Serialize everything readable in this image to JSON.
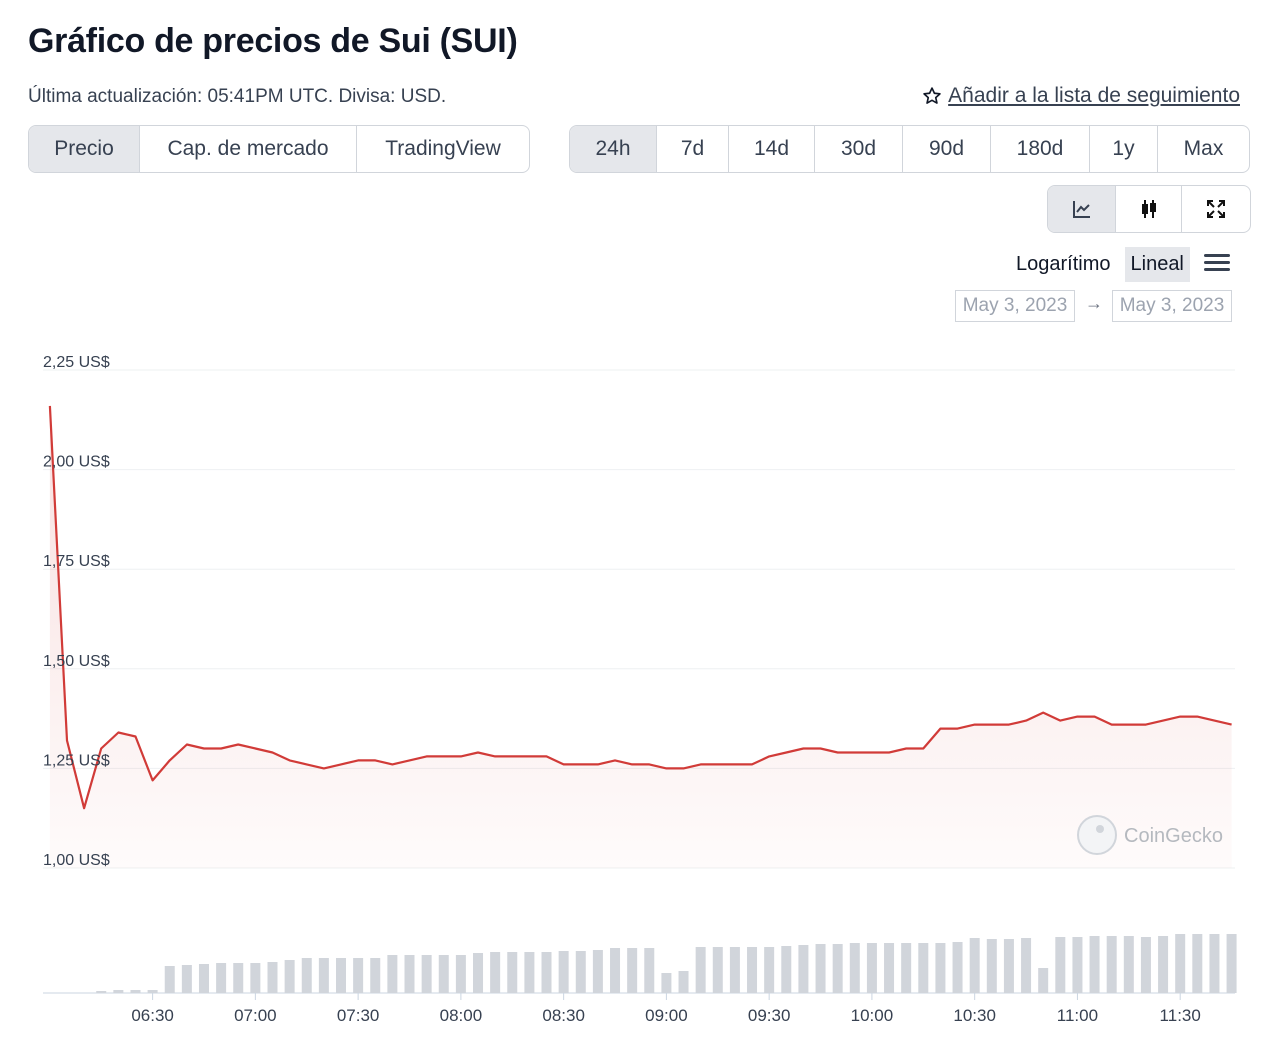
{
  "header": {
    "title": "Gráfico de precios de Sui (SUI)",
    "updated": "Última actualización: 05:41PM UTC. Divisa: USD.",
    "watchlist": "Añadir a la lista de seguimiento"
  },
  "tabs": [
    "Precio",
    "Cap. de mercado",
    "TradingView"
  ],
  "ranges": [
    "24h",
    "7d",
    "14d",
    "30d",
    "90d",
    "180d",
    "1y",
    "Max"
  ],
  "scale_options": [
    "Logarítimo",
    "Lineal"
  ],
  "date_from": "May 3, 2023",
  "date_to": "May 3, 2023",
  "watermark": "CoinGecko",
  "chart_data": {
    "type": "line",
    "color": "#d13b38",
    "x": [
      "06:00",
      "06:05",
      "06:10",
      "06:15",
      "06:20",
      "06:25",
      "06:30",
      "06:35",
      "06:40",
      "06:45",
      "06:50",
      "06:55",
      "07:00",
      "07:05",
      "07:10",
      "07:15",
      "07:20",
      "07:25",
      "07:30",
      "07:35",
      "07:40",
      "07:45",
      "07:50",
      "07:55",
      "08:00",
      "08:05",
      "08:10",
      "08:15",
      "08:20",
      "08:25",
      "08:30",
      "08:35",
      "08:40",
      "08:45",
      "08:50",
      "08:55",
      "09:00",
      "09:05",
      "09:10",
      "09:15",
      "09:20",
      "09:25",
      "09:30",
      "09:35",
      "09:40",
      "09:45",
      "09:50",
      "09:55",
      "10:00",
      "10:05",
      "10:10",
      "10:15",
      "10:20",
      "10:25",
      "10:30",
      "10:35",
      "10:40",
      "10:45",
      "10:50",
      "10:55",
      "11:00",
      "11:05",
      "11:10",
      "11:15",
      "11:20",
      "11:25",
      "11:30",
      "11:35",
      "11:40",
      "11:45"
    ],
    "values": [
      2.16,
      1.32,
      1.15,
      1.3,
      1.34,
      1.33,
      1.22,
      1.27,
      1.31,
      1.3,
      1.3,
      1.31,
      1.3,
      1.29,
      1.27,
      1.26,
      1.25,
      1.26,
      1.27,
      1.27,
      1.26,
      1.27,
      1.28,
      1.28,
      1.28,
      1.29,
      1.28,
      1.28,
      1.28,
      1.28,
      1.26,
      1.26,
      1.26,
      1.27,
      1.26,
      1.26,
      1.25,
      1.25,
      1.26,
      1.26,
      1.26,
      1.26,
      1.28,
      1.29,
      1.3,
      1.3,
      1.29,
      1.29,
      1.29,
      1.29,
      1.3,
      1.3,
      1.35,
      1.35,
      1.36,
      1.36,
      1.36,
      1.37,
      1.39,
      1.37,
      1.38,
      1.38,
      1.36,
      1.36,
      1.36,
      1.37,
      1.38,
      1.38,
      1.37,
      1.36
    ],
    "volumes": [
      0,
      0,
      0,
      2,
      3,
      3,
      3,
      27,
      28,
      29,
      30,
      30,
      30,
      31,
      33,
      35,
      35,
      35,
      35,
      35,
      38,
      38,
      38,
      38,
      38,
      40,
      41,
      41,
      41,
      41,
      42,
      42,
      43,
      45,
      45,
      45,
      20,
      22,
      46,
      46,
      46,
      46,
      46,
      47,
      48,
      49,
      49,
      50,
      50,
      50,
      50,
      50,
      50,
      51,
      55,
      54,
      54,
      55,
      25,
      56,
      56,
      57,
      57,
      57,
      56,
      57,
      59,
      59,
      59,
      59
    ],
    "volume_color": "#d1d5db",
    "xlim": [
      "05:58",
      "11:46"
    ],
    "xticks": [
      "06:30",
      "07:00",
      "07:30",
      "08:00",
      "08:30",
      "09:00",
      "09:30",
      "10:00",
      "10:30",
      "11:00",
      "11:30"
    ],
    "ylim": [
      1.0,
      2.25
    ],
    "yticks": [
      {
        "value": 1.0,
        "label": "1,00 US$"
      },
      {
        "value": 1.25,
        "label": "1,25 US$"
      },
      {
        "value": 1.5,
        "label": "1,50 US$"
      },
      {
        "value": 1.75,
        "label": "1,75 US$"
      },
      {
        "value": 2.0,
        "label": "2,00 US$"
      },
      {
        "value": 2.25,
        "label": "2,25 US$"
      }
    ],
    "grid": true
  }
}
